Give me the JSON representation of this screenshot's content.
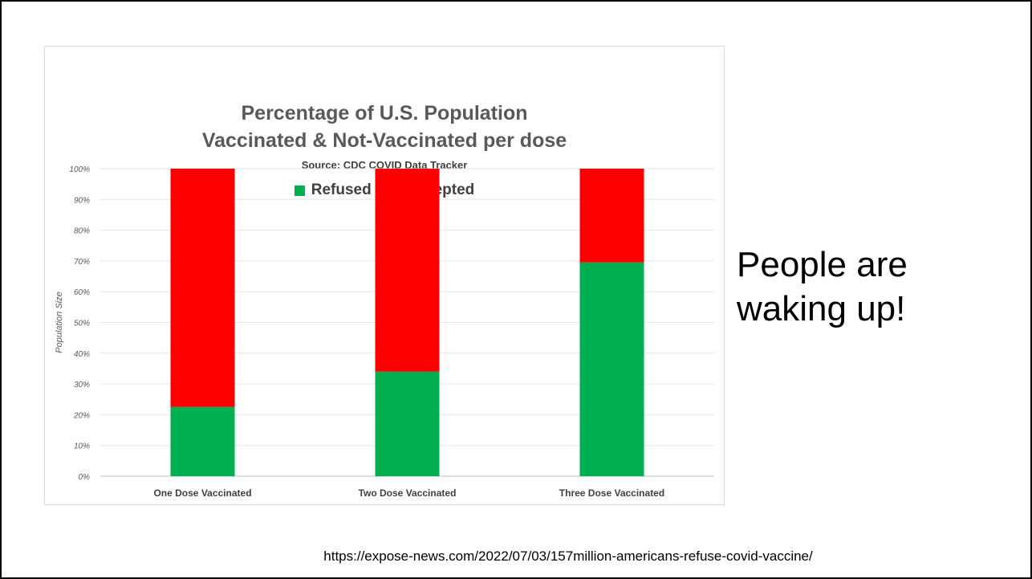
{
  "chart_data": {
    "type": "bar",
    "stacked": true,
    "title_lines": [
      "Percentage of U.S. Population",
      "Vaccinated & Not-Vaccinated per dose"
    ],
    "subtitle": "Source: CDC COVID Data Tracker",
    "ylabel": "Population Size",
    "xlabel": "",
    "ylim": [
      0,
      100
    ],
    "yticks": [
      "0%",
      "10%",
      "20%",
      "30%",
      "40%",
      "50%",
      "60%",
      "70%",
      "80%",
      "90%",
      "100%"
    ],
    "categories": [
      "One Dose Vaccinated",
      "Two Dose Vaccinated",
      "Three Dose Vaccinated"
    ],
    "series": [
      {
        "name": "Refused",
        "color": "#00b050",
        "values": [
          22.5,
          34,
          69.5
        ]
      },
      {
        "name": "Accepted",
        "color": "#ff0000",
        "values": [
          77.5,
          66,
          30.5
        ]
      }
    ],
    "legend_position": "top",
    "grid": true
  },
  "caption": {
    "line1": "People are",
    "line2": "waking up!"
  },
  "source_url": "https://expose-news.com/2022/07/03/157million-americans-refuse-covid-vaccine/"
}
